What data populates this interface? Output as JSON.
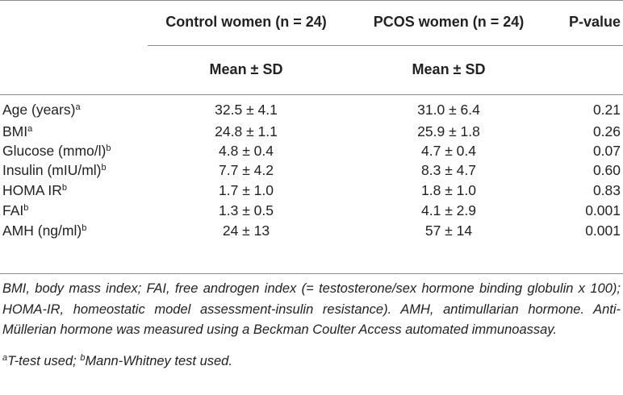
{
  "columns": {
    "control": "Control women (n = 24)",
    "pcos": "PCOS women (n = 24)",
    "pvalue": "P-value"
  },
  "subheaders": {
    "control": "Mean ± SD",
    "pcos": "Mean ± SD"
  },
  "rows": [
    {
      "label": "Age (years)",
      "sup": "a",
      "control": "32.5 ± 4.1",
      "pcos": "31.0 ± 6.4",
      "p": "0.21"
    },
    {
      "label": "BMI",
      "sup": "a",
      "control": "24.8 ± 1.1",
      "pcos": "25.9 ± 1.8",
      "p": "0.26"
    },
    {
      "label": "Glucose (mmo/l)",
      "sup": "b",
      "control": "4.8 ± 0.4",
      "pcos": "4.7 ± 0.4",
      "p": "0.07"
    },
    {
      "label": "Insulin (mIU/ml)",
      "sup": "b",
      "control": "7.7 ± 4.2",
      "pcos": "8.3 ± 4.7",
      "p": "0.60"
    },
    {
      "label": "HOMA IR",
      "sup": "b",
      "control": "1.7 ± 1.0",
      "pcos": "1.8 ± 1.0",
      "p": "0.83"
    },
    {
      "label": "FAI",
      "sup": "b",
      "control": "1.3 ± 0.5",
      "pcos": "4.1 ± 2.9",
      "p": "0.001"
    },
    {
      "label": "AMH (ng/ml)",
      "sup": "b",
      "control": "24 ± 13",
      "pcos": "57 ± 14",
      "p": "0.001"
    }
  ],
  "footnote": "BMI, body mass index; FAI, free androgen index (= testosterone/sex hormone binding globulin x 100); HOMA-IR, homeostatic model assessment-insulin resistance). AMH, antimullarian hormone. Anti-Müllerian hormone was measured using a Beckman Coulter Access automated immunoassay.",
  "test_notes": {
    "a_mark": "a",
    "a_text": "T-test used; ",
    "b_mark": "b",
    "b_text": "Mann-Whitney test used."
  }
}
